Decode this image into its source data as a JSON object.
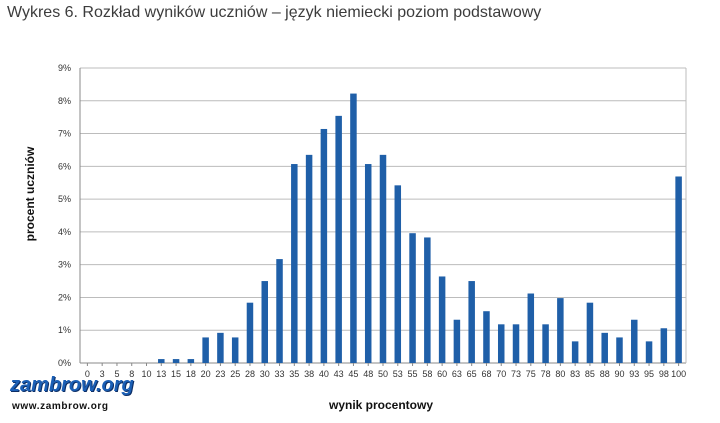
{
  "title": "Wykres 6. Rozkład wyników uczniów – język niemiecki poziom podstawowy",
  "watermark": {
    "name": "zambrow.org",
    "url": "www.zambrow.org"
  },
  "colors": {
    "bar": "#1f5fa8",
    "grid": "#bcbcbc",
    "axis": "#888888"
  },
  "chart_data": {
    "type": "bar",
    "title": "Wykres 6. Rozkład wyników uczniów – język niemiecki poziom podstawowy",
    "xlabel": "wynik procentowy",
    "ylabel": "procent uczniów",
    "ylim": [
      0,
      9
    ],
    "yticks": [
      "0%",
      "1%",
      "2%",
      "3%",
      "4%",
      "5%",
      "6%",
      "7%",
      "8%",
      "9%"
    ],
    "grid": true,
    "legend": "none",
    "categories": [
      "0",
      "3",
      "5",
      "8",
      "10",
      "13",
      "15",
      "18",
      "20",
      "23",
      "25",
      "28",
      "30",
      "33",
      "35",
      "38",
      "40",
      "43",
      "45",
      "48",
      "50",
      "53",
      "55",
      "58",
      "60",
      "63",
      "65",
      "68",
      "70",
      "73",
      "75",
      "78",
      "80",
      "83",
      "85",
      "88",
      "90",
      "93",
      "95",
      "98",
      "100"
    ],
    "values": [
      0,
      0,
      0,
      0,
      0,
      0.12,
      0.12,
      0.12,
      0.78,
      0.92,
      0.78,
      1.84,
      2.5,
      3.17,
      6.07,
      6.35,
      7.14,
      7.54,
      8.22,
      6.07,
      6.35,
      5.42,
      3.96,
      3.83,
      2.64,
      1.32,
      2.5,
      1.58,
      1.18,
      1.18,
      2.12,
      1.18,
      1.98,
      0.66,
      1.84,
      0.92,
      0.78,
      1.32,
      0.66,
      1.06,
      5.69
    ]
  }
}
